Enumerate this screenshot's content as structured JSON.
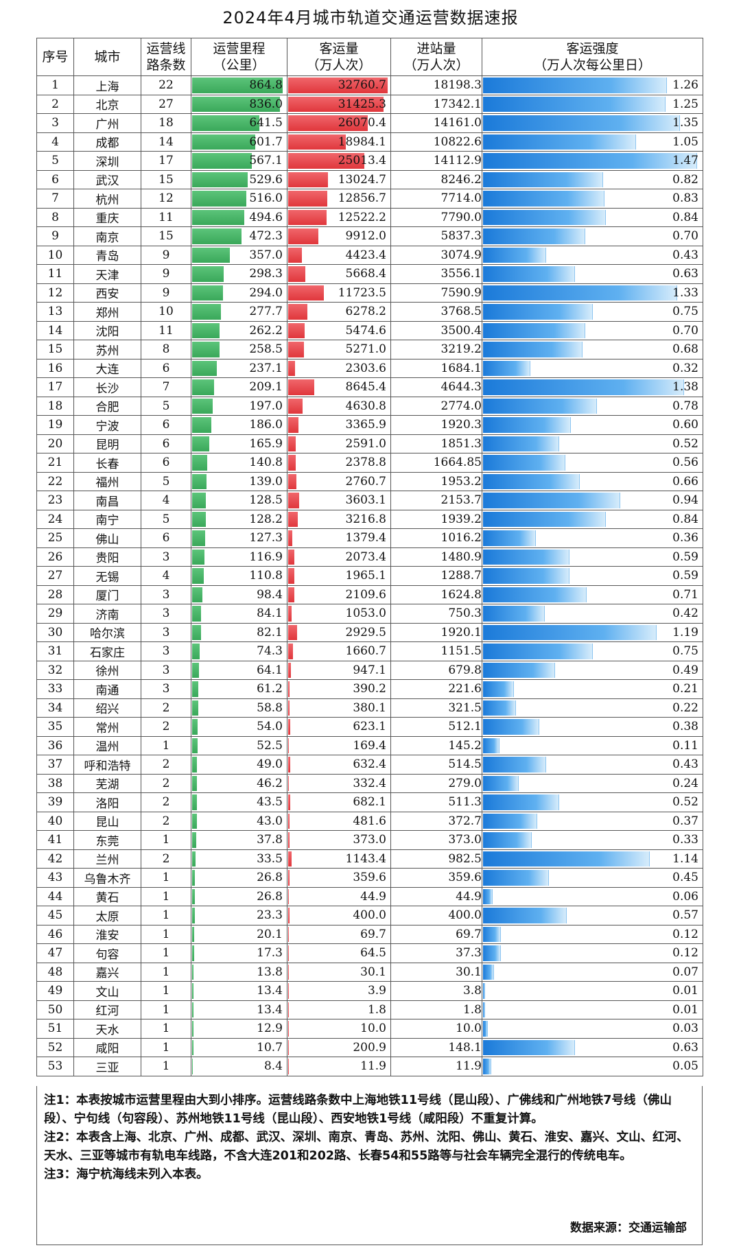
{
  "title": "2024年4月城市轨道交通运营数据速报",
  "header": {
    "rank": "序号",
    "city": "城市",
    "lines": [
      "运营线",
      "路条数"
    ],
    "mileage": [
      "运营里程",
      "（公里）"
    ],
    "ridership": [
      "客运量",
      "（万人次）"
    ],
    "entries": [
      "进站量",
      "（万人次）"
    ],
    "intensity": [
      "客运强度",
      "（万人次每公里日）"
    ]
  },
  "bar_colors": {
    "mileage": "#3aa85a",
    "ridership": "#e0373c",
    "intensity": "#1b7ad9"
  },
  "rows": [
    {
      "rank": "1",
      "city": "上海",
      "lines": "22",
      "mileage": "864.8",
      "ridership": "32760.7",
      "entries": "18198.3",
      "intensity": "1.26"
    },
    {
      "rank": "2",
      "city": "北京",
      "lines": "27",
      "mileage": "836.0",
      "ridership": "31425.3",
      "entries": "17342.1",
      "intensity": "1.25"
    },
    {
      "rank": "3",
      "city": "广州",
      "lines": "18",
      "mileage": "641.5",
      "ridership": "26070.4",
      "entries": "14161.0",
      "intensity": "1.35"
    },
    {
      "rank": "4",
      "city": "成都",
      "lines": "14",
      "mileage": "601.7",
      "ridership": "18984.1",
      "entries": "10822.6",
      "intensity": "1.05"
    },
    {
      "rank": "5",
      "city": "深圳",
      "lines": "17",
      "mileage": "567.1",
      "ridership": "25013.4",
      "entries": "14112.9",
      "intensity": "1.47"
    },
    {
      "rank": "6",
      "city": "武汉",
      "lines": "15",
      "mileage": "529.6",
      "ridership": "13024.7",
      "entries": "8246.2",
      "intensity": "0.82"
    },
    {
      "rank": "7",
      "city": "杭州",
      "lines": "12",
      "mileage": "516.0",
      "ridership": "12856.7",
      "entries": "7714.0",
      "intensity": "0.83"
    },
    {
      "rank": "8",
      "city": "重庆",
      "lines": "11",
      "mileage": "494.6",
      "ridership": "12522.2",
      "entries": "7790.0",
      "intensity": "0.84"
    },
    {
      "rank": "9",
      "city": "南京",
      "lines": "15",
      "mileage": "472.3",
      "ridership": "9912.0",
      "entries": "5837.3",
      "intensity": "0.70"
    },
    {
      "rank": "10",
      "city": "青岛",
      "lines": "9",
      "mileage": "357.0",
      "ridership": "4423.4",
      "entries": "3074.9",
      "intensity": "0.43"
    },
    {
      "rank": "11",
      "city": "天津",
      "lines": "9",
      "mileage": "298.3",
      "ridership": "5668.4",
      "entries": "3556.1",
      "intensity": "0.63"
    },
    {
      "rank": "12",
      "city": "西安",
      "lines": "9",
      "mileage": "294.0",
      "ridership": "11723.5",
      "entries": "7590.9",
      "intensity": "1.33"
    },
    {
      "rank": "13",
      "city": "郑州",
      "lines": "10",
      "mileage": "277.7",
      "ridership": "6278.2",
      "entries": "3768.5",
      "intensity": "0.75"
    },
    {
      "rank": "14",
      "city": "沈阳",
      "lines": "11",
      "mileage": "262.2",
      "ridership": "5474.6",
      "entries": "3500.4",
      "intensity": "0.70"
    },
    {
      "rank": "15",
      "city": "苏州",
      "lines": "8",
      "mileage": "258.5",
      "ridership": "5271.0",
      "entries": "3219.2",
      "intensity": "0.68"
    },
    {
      "rank": "16",
      "city": "大连",
      "lines": "6",
      "mileage": "237.1",
      "ridership": "2303.6",
      "entries": "1684.1",
      "intensity": "0.32"
    },
    {
      "rank": "17",
      "city": "长沙",
      "lines": "7",
      "mileage": "209.1",
      "ridership": "8645.4",
      "entries": "4644.3",
      "intensity": "1.38"
    },
    {
      "rank": "18",
      "city": "合肥",
      "lines": "5",
      "mileage": "197.0",
      "ridership": "4630.8",
      "entries": "2774.0",
      "intensity": "0.78"
    },
    {
      "rank": "19",
      "city": "宁波",
      "lines": "6",
      "mileage": "186.0",
      "ridership": "3365.9",
      "entries": "1920.3",
      "intensity": "0.60"
    },
    {
      "rank": "20",
      "city": "昆明",
      "lines": "6",
      "mileage": "165.9",
      "ridership": "2591.0",
      "entries": "1851.3",
      "intensity": "0.52"
    },
    {
      "rank": "21",
      "city": "长春",
      "lines": "6",
      "mileage": "140.8",
      "ridership": "2378.8",
      "entries": "1664.85",
      "intensity": "0.56"
    },
    {
      "rank": "22",
      "city": "福州",
      "lines": "5",
      "mileage": "139.0",
      "ridership": "2760.7",
      "entries": "1953.2",
      "intensity": "0.66"
    },
    {
      "rank": "23",
      "city": "南昌",
      "lines": "4",
      "mileage": "128.5",
      "ridership": "3603.1",
      "entries": "2153.7",
      "intensity": "0.94"
    },
    {
      "rank": "24",
      "city": "南宁",
      "lines": "5",
      "mileage": "128.2",
      "ridership": "3216.8",
      "entries": "1939.2",
      "intensity": "0.84"
    },
    {
      "rank": "25",
      "city": "佛山",
      "lines": "6",
      "mileage": "127.3",
      "ridership": "1379.4",
      "entries": "1016.2",
      "intensity": "0.36"
    },
    {
      "rank": "26",
      "city": "贵阳",
      "lines": "3",
      "mileage": "116.9",
      "ridership": "2073.4",
      "entries": "1480.9",
      "intensity": "0.59"
    },
    {
      "rank": "27",
      "city": "无锡",
      "lines": "4",
      "mileage": "110.8",
      "ridership": "1965.1",
      "entries": "1288.7",
      "intensity": "0.59"
    },
    {
      "rank": "28",
      "city": "厦门",
      "lines": "3",
      "mileage": "98.4",
      "ridership": "2109.6",
      "entries": "1624.8",
      "intensity": "0.71"
    },
    {
      "rank": "29",
      "city": "济南",
      "lines": "3",
      "mileage": "84.1",
      "ridership": "1053.0",
      "entries": "750.3",
      "intensity": "0.42"
    },
    {
      "rank": "30",
      "city": "哈尔滨",
      "lines": "3",
      "mileage": "82.1",
      "ridership": "2929.5",
      "entries": "1920.1",
      "intensity": "1.19"
    },
    {
      "rank": "31",
      "city": "石家庄",
      "lines": "3",
      "mileage": "74.3",
      "ridership": "1660.7",
      "entries": "1151.5",
      "intensity": "0.75"
    },
    {
      "rank": "32",
      "city": "徐州",
      "lines": "3",
      "mileage": "64.1",
      "ridership": "947.1",
      "entries": "679.8",
      "intensity": "0.49"
    },
    {
      "rank": "33",
      "city": "南通",
      "lines": "3",
      "mileage": "61.2",
      "ridership": "390.2",
      "entries": "221.6",
      "intensity": "0.21"
    },
    {
      "rank": "34",
      "city": "绍兴",
      "lines": "2",
      "mileage": "58.8",
      "ridership": "380.1",
      "entries": "321.5",
      "intensity": "0.22"
    },
    {
      "rank": "35",
      "city": "常州",
      "lines": "2",
      "mileage": "54.0",
      "ridership": "623.1",
      "entries": "512.1",
      "intensity": "0.38"
    },
    {
      "rank": "36",
      "city": "温州",
      "lines": "1",
      "mileage": "52.5",
      "ridership": "169.4",
      "entries": "145.2",
      "intensity": "0.11"
    },
    {
      "rank": "37",
      "city": "呼和浩特",
      "lines": "2",
      "mileage": "49.0",
      "ridership": "632.4",
      "entries": "514.5",
      "intensity": "0.43"
    },
    {
      "rank": "38",
      "city": "芜湖",
      "lines": "2",
      "mileage": "46.2",
      "ridership": "332.4",
      "entries": "279.0",
      "intensity": "0.24"
    },
    {
      "rank": "39",
      "city": "洛阳",
      "lines": "2",
      "mileage": "43.5",
      "ridership": "682.1",
      "entries": "511.3",
      "intensity": "0.52"
    },
    {
      "rank": "40",
      "city": "昆山",
      "lines": "2",
      "mileage": "43.0",
      "ridership": "481.6",
      "entries": "372.7",
      "intensity": "0.37"
    },
    {
      "rank": "41",
      "city": "东莞",
      "lines": "1",
      "mileage": "37.8",
      "ridership": "373.0",
      "entries": "373.0",
      "intensity": "0.33"
    },
    {
      "rank": "42",
      "city": "兰州",
      "lines": "2",
      "mileage": "33.5",
      "ridership": "1143.4",
      "entries": "982.5",
      "intensity": "1.14"
    },
    {
      "rank": "43",
      "city": "乌鲁木齐",
      "lines": "1",
      "mileage": "26.8",
      "ridership": "359.6",
      "entries": "359.6",
      "intensity": "0.45"
    },
    {
      "rank": "44",
      "city": "黄石",
      "lines": "1",
      "mileage": "26.8",
      "ridership": "44.9",
      "entries": "44.9",
      "intensity": "0.06"
    },
    {
      "rank": "45",
      "city": "太原",
      "lines": "1",
      "mileage": "23.3",
      "ridership": "400.0",
      "entries": "400.0",
      "intensity": "0.57"
    },
    {
      "rank": "46",
      "city": "淮安",
      "lines": "1",
      "mileage": "20.1",
      "ridership": "69.7",
      "entries": "69.7",
      "intensity": "0.12"
    },
    {
      "rank": "47",
      "city": "句容",
      "lines": "1",
      "mileage": "17.3",
      "ridership": "64.5",
      "entries": "37.3",
      "intensity": "0.12"
    },
    {
      "rank": "48",
      "city": "嘉兴",
      "lines": "1",
      "mileage": "13.8",
      "ridership": "30.1",
      "entries": "30.1",
      "intensity": "0.07"
    },
    {
      "rank": "49",
      "city": "文山",
      "lines": "1",
      "mileage": "13.4",
      "ridership": "3.9",
      "entries": "3.8",
      "intensity": "0.01"
    },
    {
      "rank": "50",
      "city": "红河",
      "lines": "1",
      "mileage": "13.4",
      "ridership": "1.8",
      "entries": "1.8",
      "intensity": "0.01"
    },
    {
      "rank": "51",
      "city": "天水",
      "lines": "1",
      "mileage": "12.9",
      "ridership": "10.0",
      "entries": "10.0",
      "intensity": "0.03"
    },
    {
      "rank": "52",
      "city": "咸阳",
      "lines": "1",
      "mileage": "10.7",
      "ridership": "200.9",
      "entries": "148.1",
      "intensity": "0.63"
    },
    {
      "rank": "53",
      "city": "三亚",
      "lines": "1",
      "mileage": "8.4",
      "ridership": "11.9",
      "entries": "11.9",
      "intensity": "0.05"
    }
  ],
  "notes": [
    "注1：本表按城市运营里程由大到小排序。运营线路条数中上海地铁11号线（昆山段）、广佛线和广州地铁7号线（佛山段）、宁句线（句容段）、苏州地铁11号线（昆山段）、西安地铁1号线（咸阳段）不重复计算。",
    "注2：本表含上海、北京、广州、成都、武汉、深圳、南京、青岛、苏州、沈阳、佛山、黄石、淮安、嘉兴、文山、红河、天水、三亚等城市有轨电车线路，不含大连201和202路、长春54和55路等与社会车辆完全混行的传统电车。",
    "注3：海宁杭海线未列入本表。"
  ],
  "source": "数据来源：交通运输部"
}
